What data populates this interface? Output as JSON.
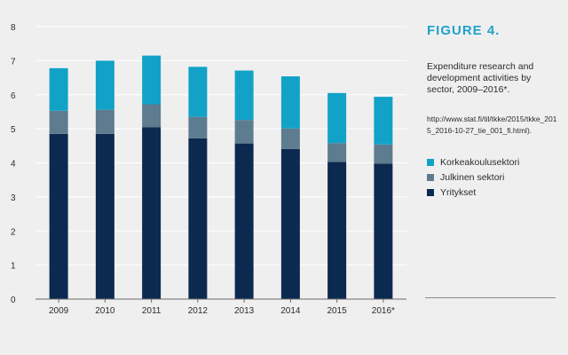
{
  "figure": {
    "title": "FIGURE 4.",
    "description": "Expenditure research and development activities by sector, 2009–2016*.",
    "source": "http://www.stat.fi/til/tkke/2015/tkke_2015_2016-10-27_tie_001_fi.html)."
  },
  "colors": {
    "background": "#f0eff0",
    "korkeakoulusektori": "#12a2c8",
    "julkinen": "#5e7c90",
    "yritykset": "#0c2a50",
    "grid": "#ffffff",
    "accent": "#1ea3c9"
  },
  "chart_data": {
    "type": "bar",
    "stacked": true,
    "categories": [
      "2009",
      "2010",
      "2011",
      "2012",
      "2013",
      "2014",
      "2015",
      "2016*"
    ],
    "series": [
      {
        "name": "Yritykset",
        "values": [
          4.85,
          4.85,
          5.05,
          4.72,
          4.57,
          4.41,
          4.03,
          3.98
        ]
      },
      {
        "name": "Julkinen sektori",
        "values": [
          0.68,
          0.71,
          0.67,
          0.63,
          0.69,
          0.6,
          0.55,
          0.56
        ]
      },
      {
        "name": "Korkeakoulusektori",
        "values": [
          1.25,
          1.44,
          1.43,
          1.47,
          1.45,
          1.53,
          1.47,
          1.4
        ]
      }
    ],
    "ylim": [
      0,
      8
    ],
    "yticks": [
      0,
      1,
      2,
      3,
      4,
      5,
      6,
      7,
      8
    ],
    "grid": true,
    "legend": {
      "position": "right",
      "entries": [
        "Korkeakoulusektori",
        "Julkinen sektori",
        "Yritykset"
      ]
    }
  }
}
